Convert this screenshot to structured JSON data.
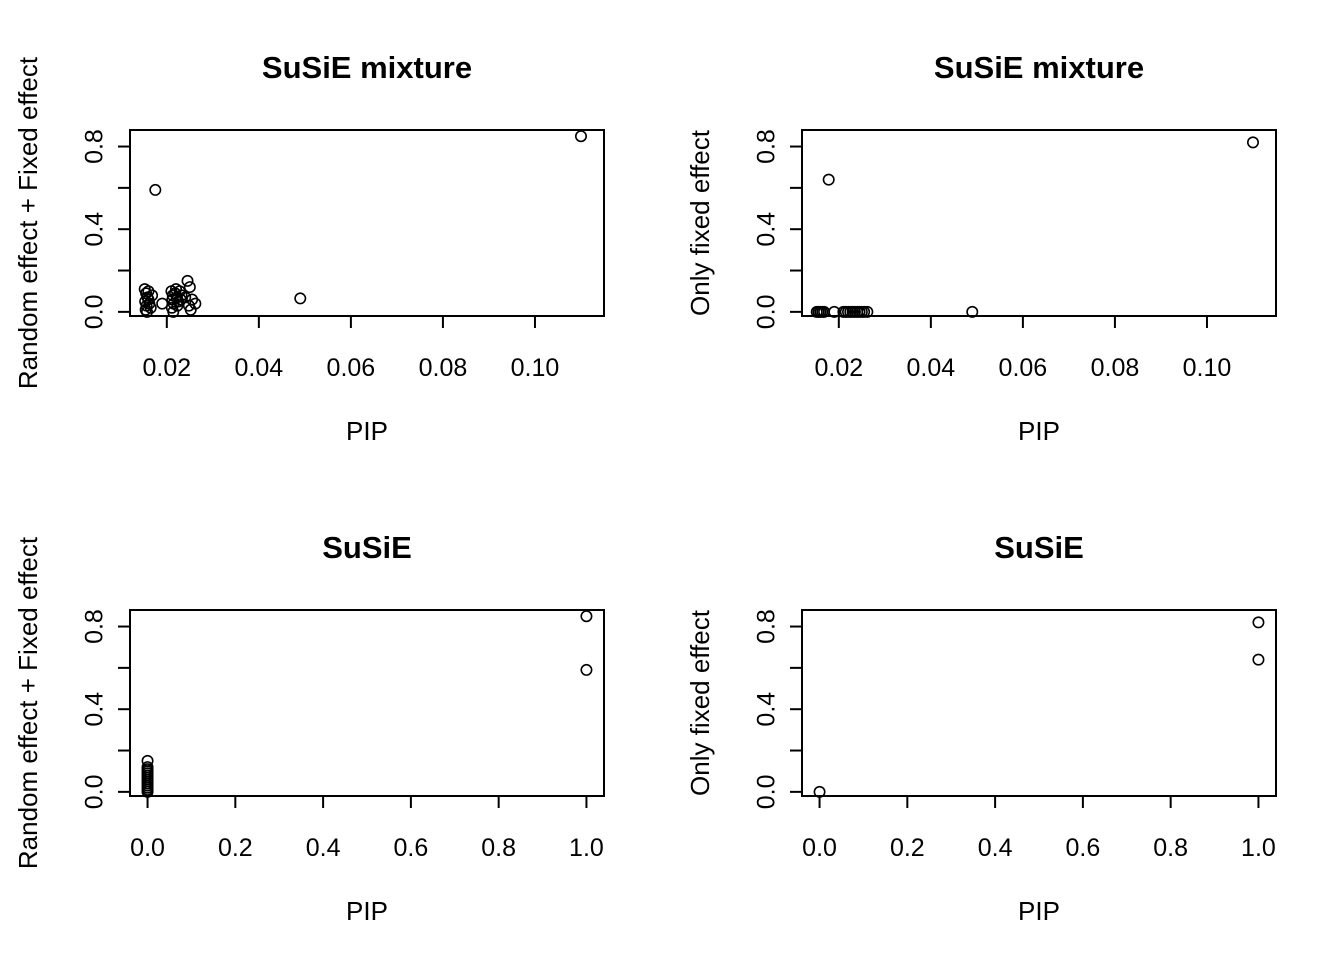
{
  "chart_data": [
    {
      "type": "scatter",
      "title": "SuSiE mixture",
      "xlabel": "PIP",
      "ylabel": "Random effect + Fixed effect",
      "xlim": [
        0.012,
        0.115
      ],
      "ylim": [
        -0.02,
        0.88
      ],
      "xticks": [
        0.02,
        0.04,
        0.06,
        0.08,
        0.1
      ],
      "xtick_labels": [
        "0.02",
        "0.04",
        "0.06",
        "0.08",
        "0.10"
      ],
      "yticks": [
        0.0,
        0.2,
        0.4,
        0.6,
        0.8
      ],
      "ytick_labels": [
        "0.0",
        "",
        "0.4",
        "",
        "0.8"
      ],
      "points": [
        [
          0.11,
          0.85
        ],
        [
          0.0175,
          0.59
        ],
        [
          0.049,
          0.065
        ],
        [
          0.0152,
          0.11
        ],
        [
          0.0155,
          0.09
        ],
        [
          0.0158,
          0.07
        ],
        [
          0.0153,
          0.05
        ],
        [
          0.0156,
          0.03
        ],
        [
          0.0154,
          0.01
        ],
        [
          0.016,
          0.06
        ],
        [
          0.0162,
          0.04
        ],
        [
          0.0165,
          0.02
        ],
        [
          0.016,
          0.1
        ],
        [
          0.0168,
          0.08
        ],
        [
          0.0157,
          0.0
        ],
        [
          0.019,
          0.04
        ],
        [
          0.021,
          0.1
        ],
        [
          0.0213,
          0.08
        ],
        [
          0.0212,
          0.06
        ],
        [
          0.0215,
          0.04
        ],
        [
          0.0211,
          0.02
        ],
        [
          0.0214,
          0.0
        ],
        [
          0.0218,
          0.09
        ],
        [
          0.022,
          0.11
        ],
        [
          0.0222,
          0.07
        ],
        [
          0.0225,
          0.05
        ],
        [
          0.0223,
          0.03
        ],
        [
          0.0228,
          0.1
        ],
        [
          0.023,
          0.06
        ],
        [
          0.0232,
          0.08
        ],
        [
          0.0245,
          0.15
        ],
        [
          0.025,
          0.12
        ],
        [
          0.024,
          0.07
        ],
        [
          0.0248,
          0.03
        ],
        [
          0.0255,
          0.06
        ],
        [
          0.0262,
          0.04
        ],
        [
          0.0252,
          0.01
        ]
      ]
    },
    {
      "type": "scatter",
      "title": "SuSiE mixture",
      "xlabel": "PIP",
      "ylabel": "Only fixed effect",
      "xlim": [
        0.012,
        0.115
      ],
      "ylim": [
        -0.02,
        0.88
      ],
      "xticks": [
        0.02,
        0.04,
        0.06,
        0.08,
        0.1
      ],
      "xtick_labels": [
        "0.02",
        "0.04",
        "0.06",
        "0.08",
        "0.10"
      ],
      "yticks": [
        0.0,
        0.2,
        0.4,
        0.6,
        0.8
      ],
      "ytick_labels": [
        "0.0",
        "",
        "0.4",
        "",
        "0.8"
      ],
      "points": [
        [
          0.11,
          0.82
        ],
        [
          0.0178,
          0.64
        ],
        [
          0.049,
          0.0
        ],
        [
          0.0152,
          0.0
        ],
        [
          0.0156,
          0.0
        ],
        [
          0.016,
          0.0
        ],
        [
          0.0164,
          0.0
        ],
        [
          0.0168,
          0.0
        ],
        [
          0.019,
          0.0
        ],
        [
          0.021,
          0.0
        ],
        [
          0.0215,
          0.0
        ],
        [
          0.022,
          0.0
        ],
        [
          0.0225,
          0.0
        ],
        [
          0.023,
          0.0
        ],
        [
          0.0235,
          0.0
        ],
        [
          0.024,
          0.0
        ],
        [
          0.0245,
          0.0
        ],
        [
          0.025,
          0.0
        ],
        [
          0.0255,
          0.0
        ],
        [
          0.0262,
          0.0
        ]
      ]
    },
    {
      "type": "scatter",
      "title": "SuSiE",
      "xlabel": "PIP",
      "ylabel": "Random effect + Fixed effect",
      "xlim": [
        -0.04,
        1.04
      ],
      "ylim": [
        -0.02,
        0.88
      ],
      "xticks": [
        0.0,
        0.2,
        0.4,
        0.6,
        0.8,
        1.0
      ],
      "xtick_labels": [
        "0.0",
        "0.2",
        "0.4",
        "0.6",
        "0.8",
        "1.0"
      ],
      "yticks": [
        0.0,
        0.2,
        0.4,
        0.6,
        0.8
      ],
      "ytick_labels": [
        "0.0",
        "",
        "0.4",
        "",
        "0.8"
      ],
      "points": [
        [
          1.0,
          0.85
        ],
        [
          1.0,
          0.59
        ],
        [
          0.0,
          0.15
        ],
        [
          0.0,
          0.12
        ],
        [
          0.0,
          0.11
        ],
        [
          0.0,
          0.1
        ],
        [
          0.0,
          0.09
        ],
        [
          0.0,
          0.08
        ],
        [
          0.0,
          0.07
        ],
        [
          0.0,
          0.06
        ],
        [
          0.0,
          0.05
        ],
        [
          0.0,
          0.04
        ],
        [
          0.0,
          0.03
        ],
        [
          0.0,
          0.02
        ],
        [
          0.0,
          0.01
        ],
        [
          0.0,
          0.0
        ]
      ]
    },
    {
      "type": "scatter",
      "title": "SuSiE",
      "xlabel": "PIP",
      "ylabel": "Only fixed effect",
      "xlim": [
        -0.04,
        1.04
      ],
      "ylim": [
        -0.02,
        0.88
      ],
      "xticks": [
        0.0,
        0.2,
        0.4,
        0.6,
        0.8,
        1.0
      ],
      "xtick_labels": [
        "0.0",
        "0.2",
        "0.4",
        "0.6",
        "0.8",
        "1.0"
      ],
      "yticks": [
        0.0,
        0.2,
        0.4,
        0.6,
        0.8
      ],
      "ytick_labels": [
        "0.0",
        "",
        "0.4",
        "",
        "0.8"
      ],
      "points": [
        [
          1.0,
          0.82
        ],
        [
          1.0,
          0.64
        ],
        [
          0.0,
          0.0
        ]
      ]
    }
  ]
}
